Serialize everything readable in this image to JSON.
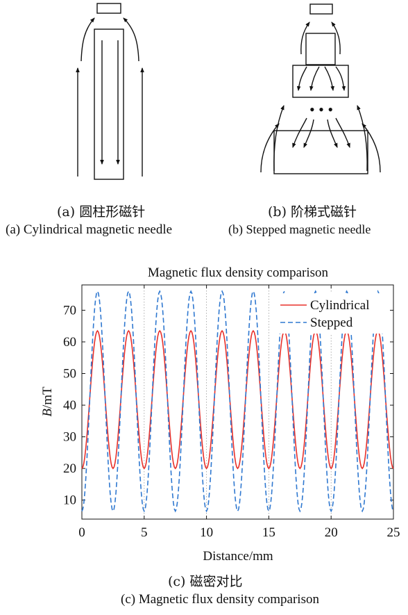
{
  "panel_a": {
    "caption_zh": "(a) 圆柱形磁针",
    "caption_en": "(a) Cylindrical magnetic needle"
  },
  "panel_b": {
    "caption_zh": "(b) 阶梯式磁针",
    "caption_en": "(b) Stepped magnetic needle",
    "ellipsis": "• • •"
  },
  "panel_c": {
    "caption_zh": "(c) 磁密对比",
    "caption_en": "(c) Magnetic flux density comparison"
  },
  "chart_data": {
    "type": "line",
    "title": "Magnetic flux density comparison",
    "xlabel": "Distance/mm",
    "ylabel_italic": "B",
    "ylabel_unit": "/mT",
    "xlim": [
      0,
      25
    ],
    "ylim": [
      4,
      78
    ],
    "xticks": [
      0,
      5,
      10,
      15,
      20,
      25
    ],
    "yticks": [
      10,
      20,
      30,
      40,
      50,
      60,
      70
    ],
    "grid": "vertical dotted",
    "legend_position": "top-right",
    "series": [
      {
        "name": "Cylindrical",
        "color": "#e8302a",
        "dash": "solid",
        "x": [
          0,
          1.25,
          2.5,
          3.75,
          5,
          6.25,
          7.5,
          8.75,
          10,
          11.25,
          12.5,
          13.75,
          15,
          16.25,
          17.5,
          18.75,
          20,
          21.25,
          22.5,
          23.75,
          25
        ],
        "y": [
          20,
          63.5,
          20,
          63.5,
          20,
          63.5,
          20,
          63.5,
          20,
          63.5,
          20,
          63.5,
          20,
          63.5,
          20,
          63.5,
          20,
          63.5,
          20,
          63.5,
          20
        ]
      },
      {
        "name": "Stepped",
        "color": "#2f78d0",
        "dash": "dashed",
        "x": [
          0,
          1.25,
          2.5,
          3.75,
          5,
          6.25,
          7.5,
          8.75,
          10,
          11.25,
          12.5,
          13.75,
          15,
          16.25,
          17.5,
          18.75,
          20,
          21.25,
          22.5,
          23.75,
          25
        ],
        "y": [
          6.5,
          76,
          6.5,
          76,
          6.5,
          76,
          6.5,
          76,
          6.5,
          76,
          6.5,
          76,
          6.5,
          76,
          6.5,
          76,
          6.5,
          76,
          6.5,
          76,
          6.5
        ]
      }
    ]
  }
}
